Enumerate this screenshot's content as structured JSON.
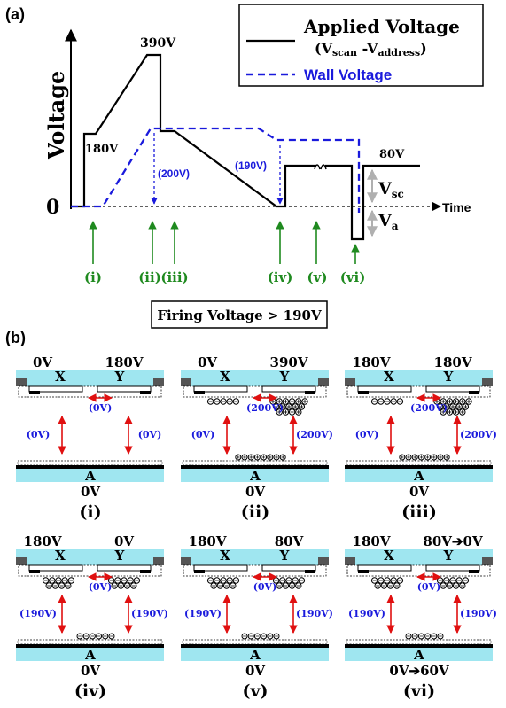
{
  "part_a": {
    "panel_label": "(a)",
    "y_axis_label": "Voltage",
    "x_axis_label": "Time",
    "zero_label": "0",
    "legend": {
      "applied_line1": "Applied Voltage",
      "applied_line2_open": "(V",
      "applied_line2_sub1": "scan",
      "applied_line2_mid": " -V",
      "applied_line2_sub2": "address",
      "applied_line2_close": ")",
      "wall": "Wall Voltage",
      "applied_color": "#000000",
      "wall_color": "#1a1adc"
    },
    "annotations": {
      "v180": "180V",
      "v390": "390V",
      "v200": "(200V)",
      "v190": "(190V)",
      "v80": "80V",
      "vsc_main": "V",
      "vsc_sub": "sc",
      "va_main": "V",
      "va_sub": "a"
    },
    "phases": [
      "(i)",
      "(ii)",
      "(iii)",
      "(iv)",
      "(v)",
      "(vi)"
    ],
    "phase_color": "#1f8a1f",
    "firing_voltage": "Firing Voltage > 190V"
  },
  "part_b": {
    "panel_label": "(b)",
    "electrode_x": "X",
    "electrode_y": "Y",
    "electrode_a": "A",
    "panels": [
      {
        "label": "(i)",
        "x_volt": "0V",
        "y_volt": "180V",
        "a_volt": "0V",
        "gap": "(0V)",
        "left": "(0V)",
        "right": "(0V)"
      },
      {
        "label": "(ii)",
        "x_volt": "0V",
        "y_volt": "390V",
        "a_volt": "0V",
        "gap": "(200V)",
        "left": "(0V)",
        "right": "(200V)"
      },
      {
        "label": "(iii)",
        "x_volt": "180V",
        "y_volt": "180V",
        "a_volt": "0V",
        "gap": "(200V)",
        "left": "(0V)",
        "right": "(200V)"
      },
      {
        "label": "(iv)",
        "x_volt": "180V",
        "y_volt": "0V",
        "a_volt": "0V",
        "gap": "(0V)",
        "left": "(190V)",
        "right": "(190V)"
      },
      {
        "label": "(v)",
        "x_volt": "180V",
        "y_volt": "80V",
        "a_volt": "0V",
        "gap": "(0V)",
        "left": "(190V)",
        "right": "(190V)"
      },
      {
        "label": "(vi)",
        "x_volt": "180V",
        "y_volt": "80V➔0V",
        "a_volt": "0V➔60V",
        "gap": "(0V)",
        "left": "(190V)",
        "right": "(190V)"
      }
    ],
    "arrow_color": "#e01010",
    "label_color": "#1a1adc",
    "glass_color": "#9fe6f0"
  }
}
